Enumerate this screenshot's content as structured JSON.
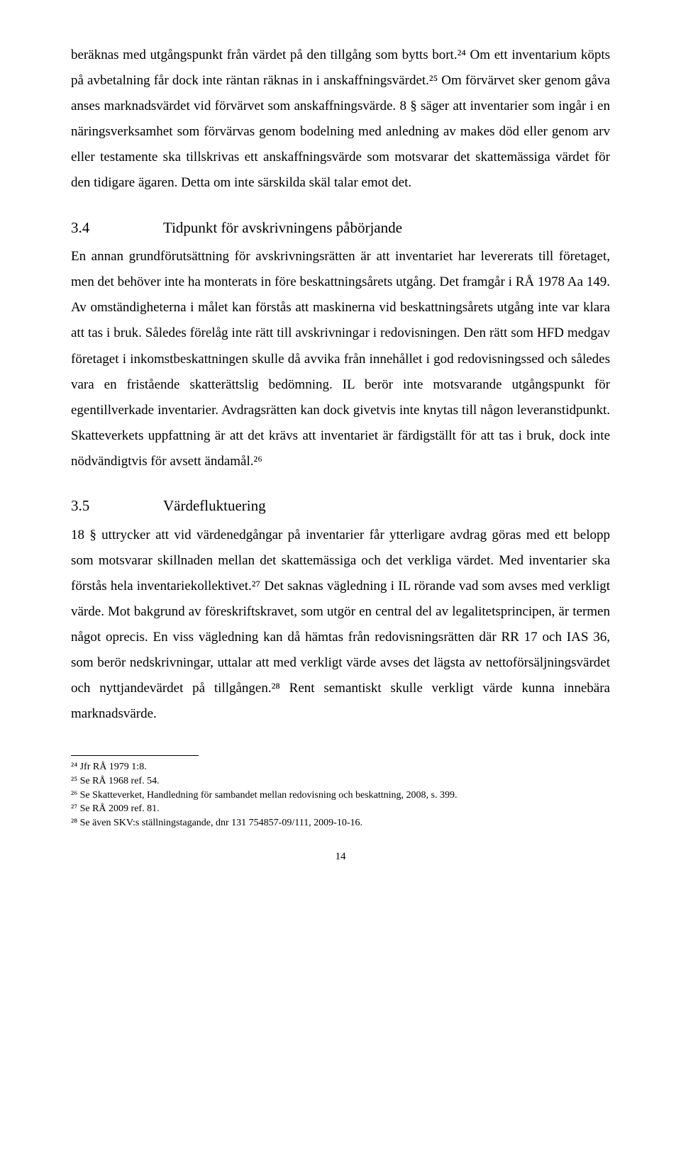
{
  "para1": "beräknas med utgångspunkt från värdet på den tillgång som bytts bort.²⁴ Om ett inventarium köpts på avbetalning får dock inte räntan räknas in i anskaffningsvärdet.²⁵ Om förvärvet sker genom gåva anses marknadsvärdet vid förvärvet som anskaffningsvärde. 8 § säger att inventarier som ingår i en näringsverksamhet som förvärvas genom bodelning med anledning av makes död eller genom arv eller testamente ska tillskrivas ett anskaffningsvärde som motsvarar det skattemässiga värdet för den tidigare ägaren. Detta om inte särskilda skäl talar emot det.",
  "section34": {
    "num": "3.4",
    "title": "Tidpunkt för avskrivningens påbörjande"
  },
  "para2": "En annan grundförutsättning för avskrivningsrätten är att inventariet har levererats till företaget, men det behöver inte ha monterats in före beskattningsårets utgång. Det framgår i RÅ 1978 Aa 149. Av omständigheterna i målet kan förstås att maskinerna vid beskattningsårets utgång inte var klara att tas i bruk. Således förelåg inte rätt till avskrivningar i redovisningen. Den rätt som HFD medgav företaget i inkomstbeskattningen skulle då avvika från innehållet i god redovisningssed och således vara en fristående skatterättslig bedömning. IL berör inte motsvarande utgångspunkt för egentillverkade inventarier. Avdragsrätten kan dock givetvis inte knytas till någon leveranstidpunkt. Skatteverkets uppfattning är att det krävs att inventariet är färdigställt för att tas i bruk, dock inte nödvändigtvis för avsett ändamål.²⁶",
  "section35": {
    "num": "3.5",
    "title": "Värdefluktuering"
  },
  "para3": "18 § uttrycker att vid värdenedgångar på inventarier får ytterligare avdrag göras med ett belopp som motsvarar skillnaden mellan det skattemässiga och det verkliga värdet. Med inventarier ska förstås hela inventariekollektivet.²⁷ Det saknas vägledning i IL rörande vad som avses med verkligt värde. Mot bakgrund av föreskriftskravet, som utgör en central del av legalitetsprincipen, är termen något oprecis. En viss vägledning kan då hämtas från redovisningsrätten där RR 17 och IAS 36, som berör nedskrivningar, uttalar att med verkligt värde avses det lägsta av nettoförsäljningsvärdet och nyttjandevärdet på tillgången.²⁸ Rent semantiskt skulle verkligt värde kunna innebära marknadsvärde.",
  "footnotes": {
    "fn24": "²⁴ Jfr RÅ 1979 1:8.",
    "fn25": "²⁵ Se RÅ 1968 ref. 54.",
    "fn26": "²⁶ Se Skatteverket, Handledning för sambandet mellan redovisning och beskattning, 2008, s. 399.",
    "fn27": "²⁷ Se RÅ 2009 ref. 81.",
    "fn28": "²⁸ Se även SKV:s ställningstagande, dnr 131 754857-09/111, 2009-10-16."
  },
  "pageNumber": "14"
}
